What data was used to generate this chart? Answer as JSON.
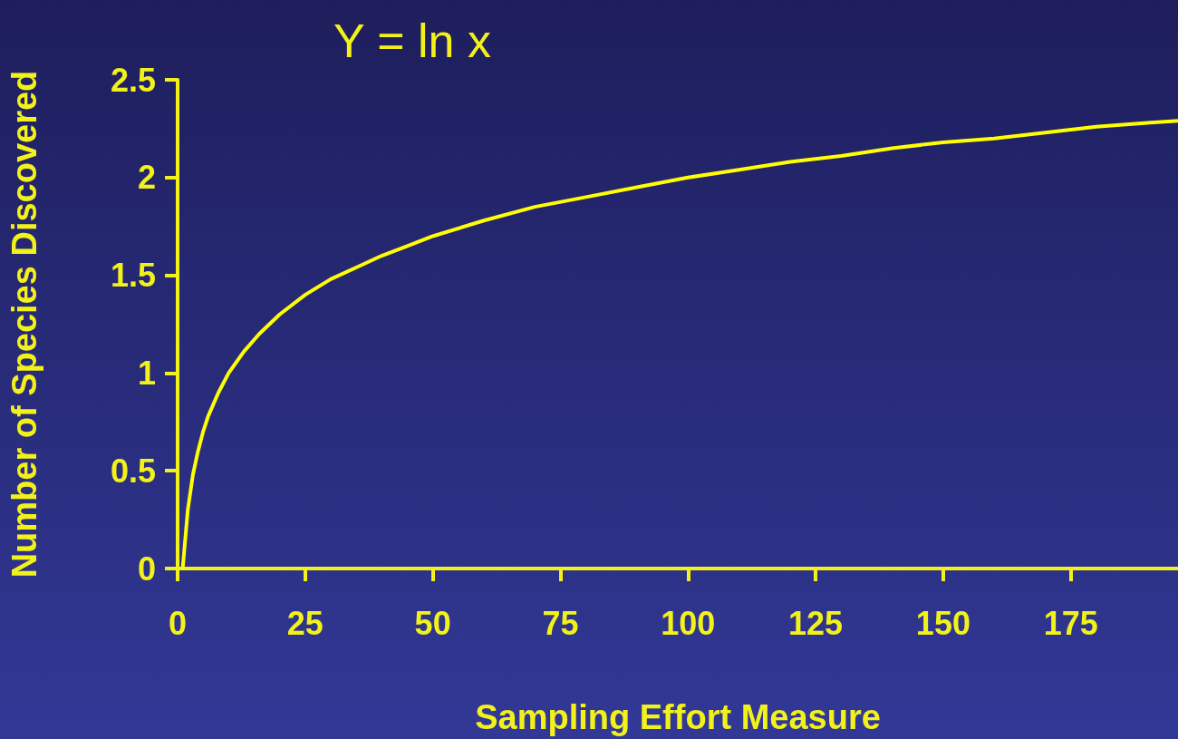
{
  "chart_data": {
    "type": "line",
    "title": "Y = ln x",
    "xlabel": "Sampling Effort Measure",
    "ylabel": "Number of Species Discovered",
    "x": [
      1,
      2,
      3,
      4,
      5,
      6,
      8,
      10,
      13,
      16,
      20,
      25,
      30,
      35,
      40,
      45,
      50,
      60,
      70,
      80,
      90,
      100,
      110,
      120,
      130,
      140,
      150,
      160,
      170,
      180,
      190,
      196
    ],
    "series": [
      {
        "color": "#ffff00",
        "values": [
          0,
          0.3,
          0.48,
          0.6,
          0.7,
          0.78,
          0.9,
          1.0,
          1.11,
          1.2,
          1.3,
          1.4,
          1.48,
          1.54,
          1.6,
          1.65,
          1.7,
          1.78,
          1.85,
          1.9,
          1.95,
          2.0,
          2.04,
          2.08,
          2.11,
          2.15,
          2.18,
          2.2,
          2.23,
          2.26,
          2.28,
          2.29
        ]
      }
    ],
    "xlim": [
      0,
      196
    ],
    "xticks": [
      0,
      25,
      50,
      75,
      100,
      125,
      150,
      175
    ],
    "ylim": [
      0,
      2.5
    ],
    "yticks": [
      0,
      0.5,
      1,
      1.5,
      2,
      2.5
    ],
    "grid": false,
    "marker": "none",
    "line_style": "solid"
  }
}
